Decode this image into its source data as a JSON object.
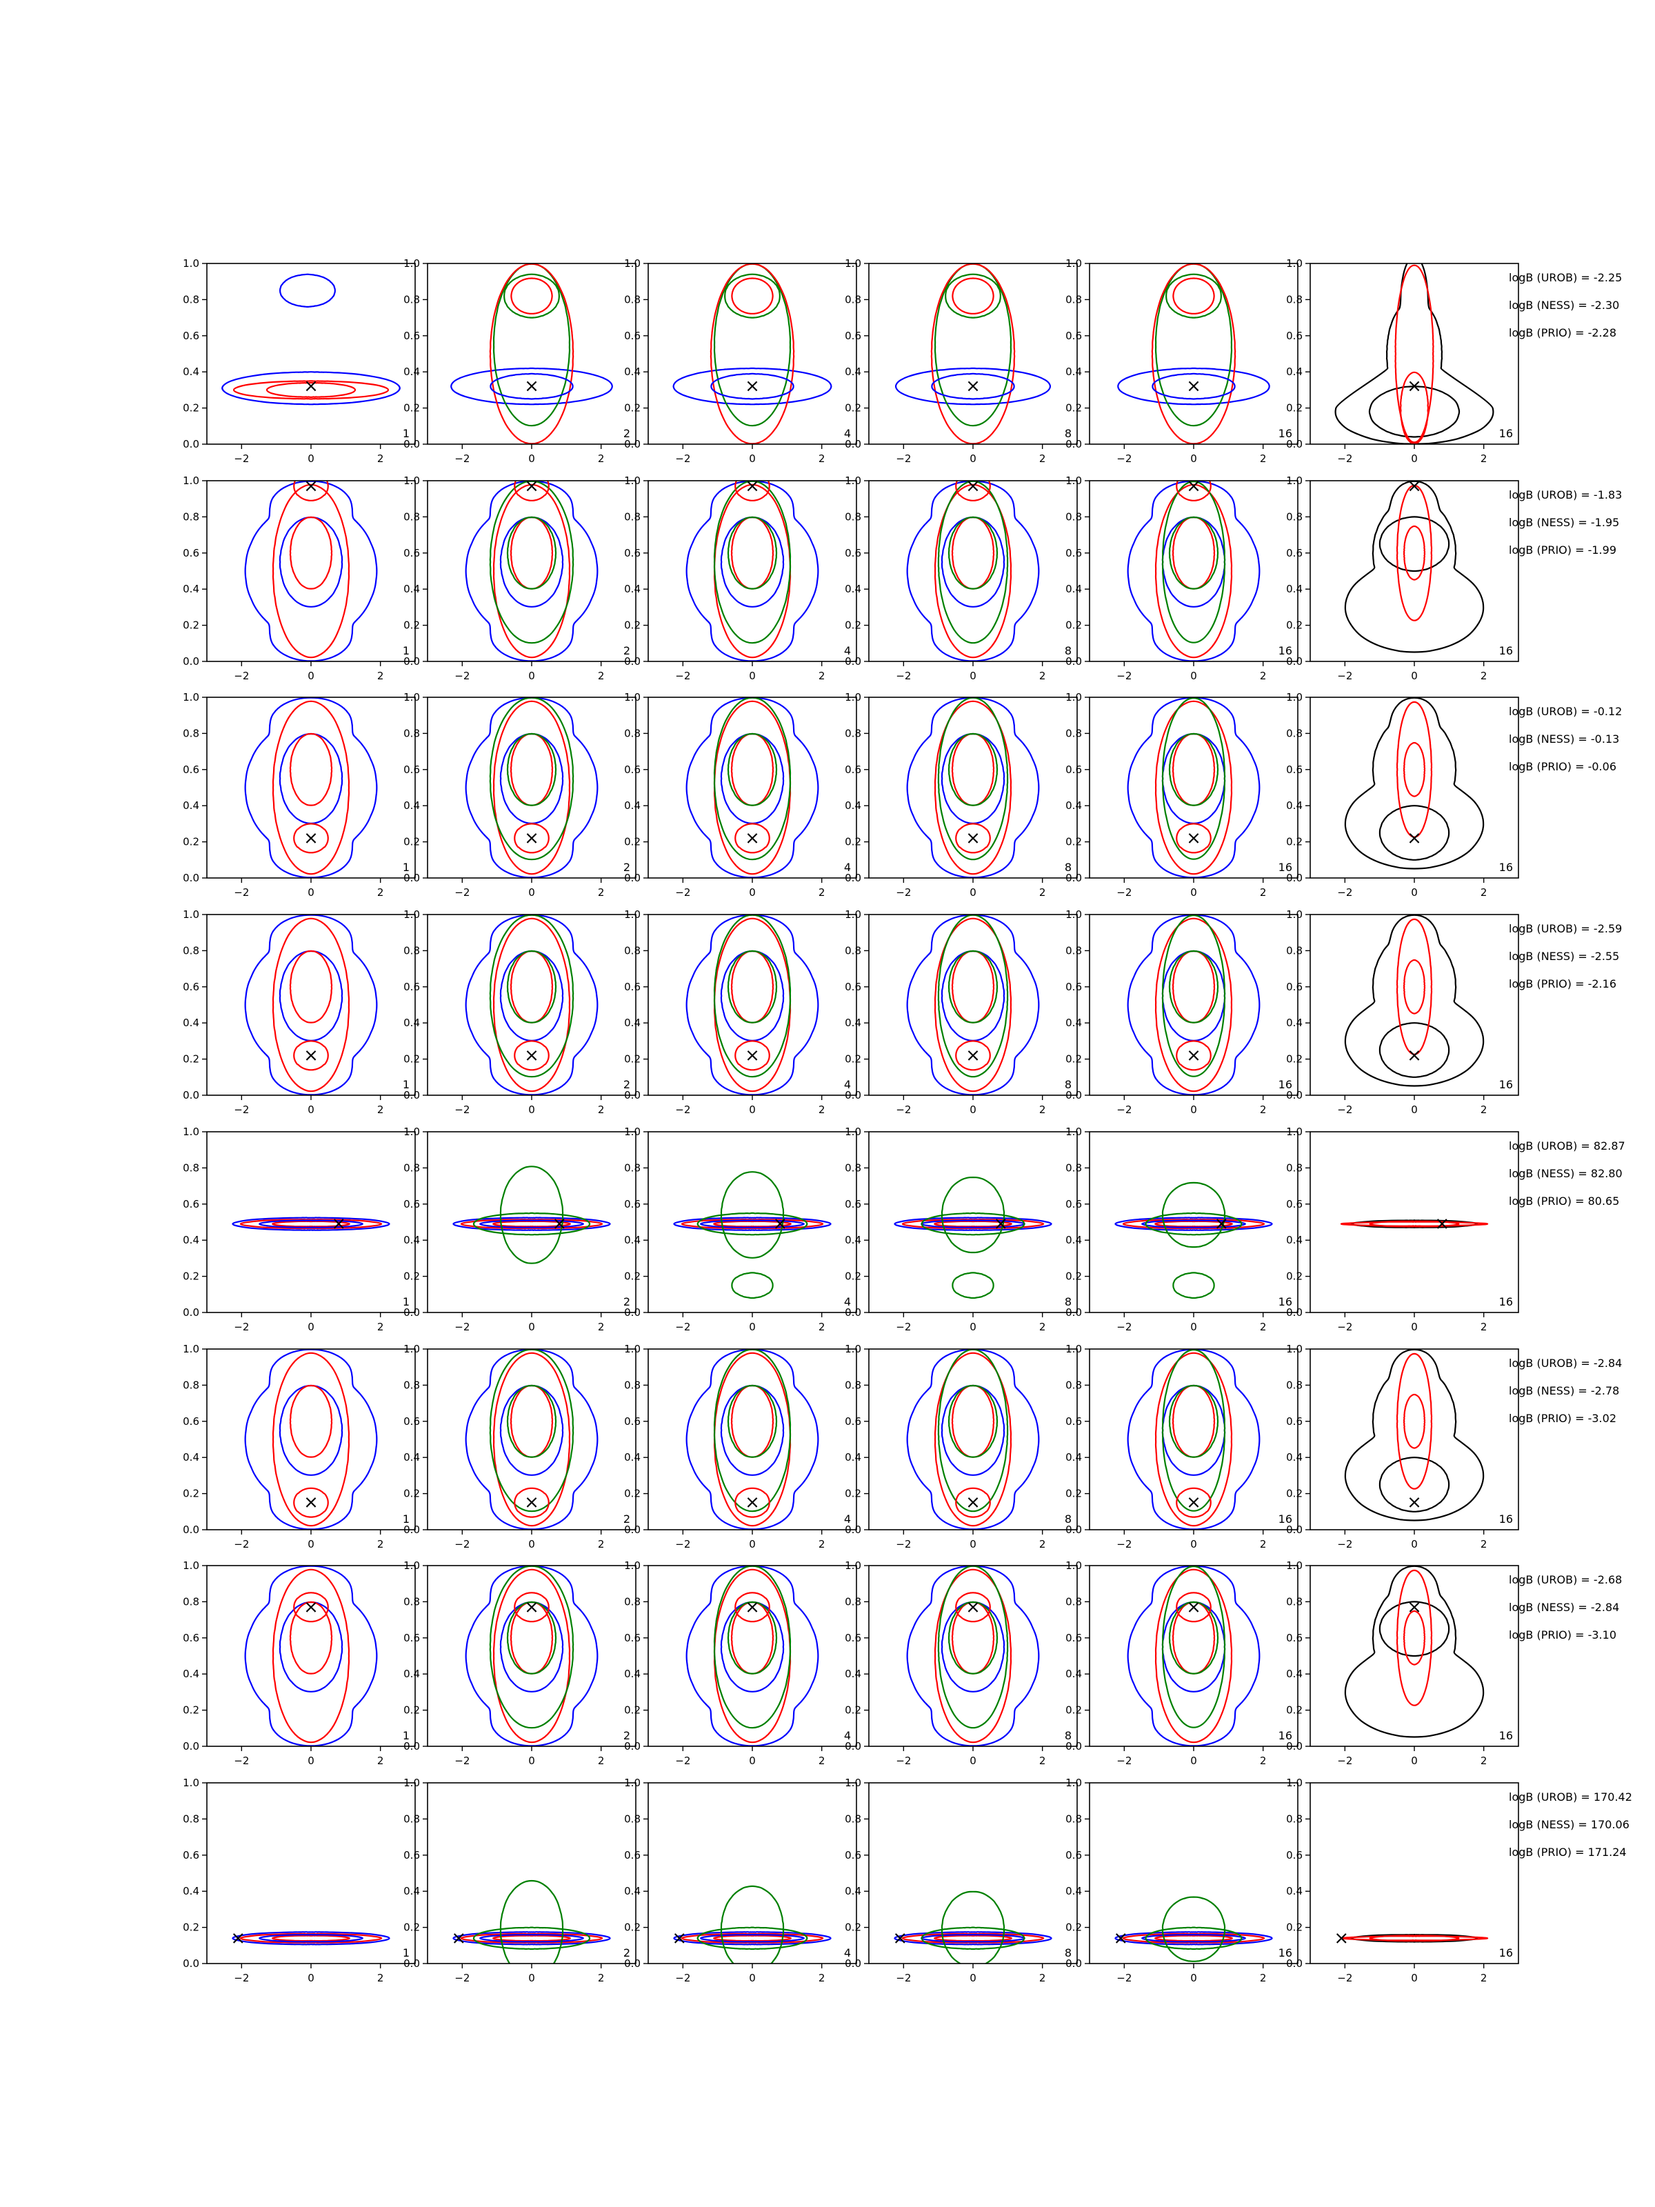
{
  "colors": {
    "urob": "#0000ff",
    "ness": "#008000",
    "prio": "#ff0000",
    "truth": "#000000",
    "single": "#000000"
  },
  "legend": [
    {
      "key": "urob",
      "color": "#0000ff"
    },
    {
      "key": "ness",
      "color": "#008000"
    },
    {
      "key": "prio",
      "color": "#ff0000"
    }
  ],
  "chart_data": {
    "type": "contour-grid",
    "rows": 8,
    "cols": 6,
    "xlim": [
      -3,
      3
    ],
    "ylim": [
      0,
      1
    ],
    "xticks": [
      -2,
      0,
      2
    ],
    "xtick_labels": [
      "−2",
      "0",
      "2"
    ],
    "yticks": [
      0,
      0.2,
      0.4,
      0.6,
      0.8,
      1.0
    ],
    "ytick_labels": [
      "0.0",
      "0.2",
      "0.4",
      "0.6",
      "0.8",
      "1.0"
    ],
    "panel_labels": [
      "1",
      "2",
      "4",
      "8",
      "16",
      "16"
    ],
    "truth_marker": "×",
    "rows_data": [
      {
        "truth": [
          0,
          0.32
        ],
        "logb": [
          "logB (UROB) = -2.25",
          "logB (NESS) = -2.30",
          "logB (PRIO) = -2.28"
        ]
      },
      {
        "truth": [
          0,
          0.97
        ],
        "logb": [
          "logB (UROB) = -1.83",
          "logB (NESS) = -1.95",
          "logB (PRIO) = -1.99"
        ]
      },
      {
        "truth": [
          0,
          0.22
        ],
        "logb": [
          "logB (UROB) = -0.12",
          "logB (NESS) = -0.13",
          "logB (PRIO) = -0.06"
        ]
      },
      {
        "truth": [
          0,
          0.22
        ],
        "logb": [
          "logB (UROB) = -2.59",
          "logB (NESS) = -2.55",
          "logB (PRIO) = -2.16"
        ]
      },
      {
        "truth": [
          0.8,
          0.49
        ],
        "logb": [
          "logB (UROB) = 82.87",
          "logB (NESS) = 82.80",
          "logB (PRIO) = 80.65"
        ]
      },
      {
        "truth": [
          0,
          0.15
        ],
        "logb": [
          "logB (UROB) = -2.84",
          "logB (NESS) = -2.78",
          "logB (PRIO) = -3.02"
        ]
      },
      {
        "truth": [
          0,
          0.77
        ],
        "logb": [
          "logB (UROB) = -2.68",
          "logB (NESS) = -2.84",
          "logB (PRIO) = -3.10"
        ]
      },
      {
        "truth": [
          -2.1,
          0.14
        ],
        "logb": [
          "logB (UROB) = 170.42",
          "logB (NESS) = 170.06",
          "logB (PRIO) = 171.24"
        ]
      }
    ]
  }
}
